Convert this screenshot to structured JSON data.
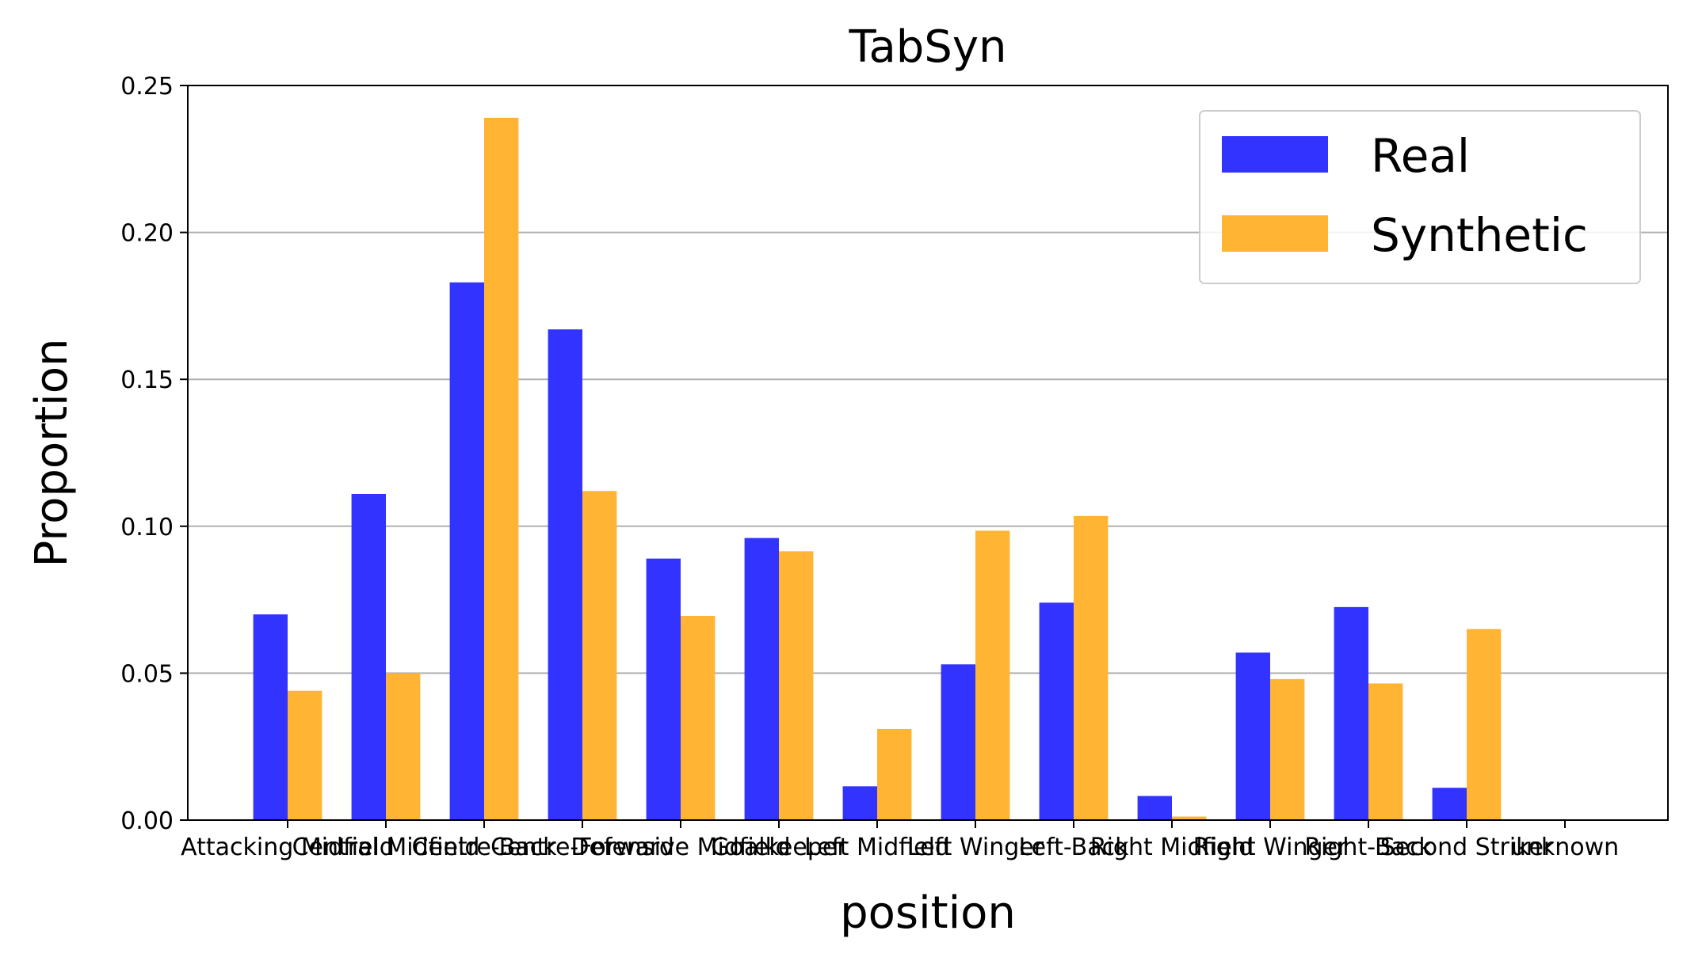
{
  "chart_data": {
    "type": "bar",
    "title": "TabSyn",
    "xlabel": "position",
    "ylabel": "Proportion",
    "ylim": [
      0,
      0.25
    ],
    "yticks": [
      "0.00",
      "0.05",
      "0.10",
      "0.15",
      "0.20",
      "0.25"
    ],
    "grid": "y",
    "legend_placement": "top-right",
    "categories": [
      "Attacking Midfield",
      "Central Midfield",
      "Centre-Back",
      "Centre-Forward",
      "Defensive Midfield",
      "Goalkeeper",
      "Left Midfield",
      "Left Winger",
      "Left-Back",
      "Right Midfield",
      "Right Winger",
      "Right-Back",
      "Second Striker",
      "unknown"
    ],
    "series": [
      {
        "name": "Real",
        "color": "#3333ff",
        "values": [
          0.07,
          0.111,
          0.183,
          0.167,
          0.089,
          0.096,
          0.0115,
          0.053,
          0.074,
          0.0082,
          0.057,
          0.0725,
          0.011,
          0.0
        ]
      },
      {
        "name": "Synthetic",
        "color": "#ffb533",
        "values": [
          0.044,
          0.05,
          0.239,
          0.112,
          0.0695,
          0.0915,
          0.031,
          0.0985,
          0.1035,
          0.0012,
          0.048,
          0.0465,
          0.065,
          0.0
        ]
      }
    ]
  }
}
